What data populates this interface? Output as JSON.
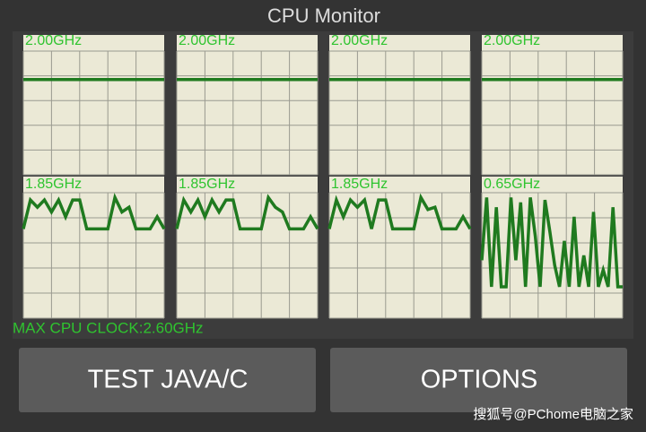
{
  "title": "CPU Monitor",
  "ylim": [
    0,
    2.6
  ],
  "line_color": "#1f7a1f",
  "panels": [
    {
      "label": "2.00GHz",
      "values": [
        2.0,
        2.0,
        2.0,
        2.0,
        2.0,
        2.0,
        2.0,
        2.0,
        2.0,
        2.0,
        2.0
      ]
    },
    {
      "label": "2.00GHz",
      "values": [
        2.0,
        2.0,
        2.0,
        2.0,
        2.0,
        2.0,
        2.0,
        2.0,
        2.0,
        2.0,
        2.0
      ]
    },
    {
      "label": "2.00GHz",
      "values": [
        2.0,
        2.0,
        2.0,
        2.0,
        2.0,
        2.0,
        2.0,
        2.0,
        2.0,
        2.0,
        2.0
      ]
    },
    {
      "label": "2.00GHz",
      "values": [
        2.0,
        2.0,
        2.0,
        2.0,
        2.0,
        2.0,
        2.0,
        2.0,
        2.0,
        2.0,
        2.0
      ]
    },
    {
      "label": "1.85GHz",
      "values": [
        1.85,
        2.45,
        2.3,
        2.45,
        2.2,
        2.45,
        2.1,
        2.45,
        2.45,
        1.85,
        1.85,
        1.85,
        1.85,
        2.5,
        2.2,
        2.3,
        1.85,
        1.85,
        1.85,
        2.1,
        1.85
      ]
    },
    {
      "label": "1.85GHz",
      "values": [
        1.85,
        2.45,
        2.2,
        2.45,
        2.1,
        2.45,
        2.2,
        2.45,
        2.45,
        1.85,
        1.85,
        1.85,
        1.85,
        2.5,
        2.3,
        2.2,
        1.85,
        1.85,
        1.85,
        2.1,
        1.85
      ]
    },
    {
      "label": "1.85GHz",
      "values": [
        1.85,
        2.45,
        2.1,
        2.45,
        2.3,
        2.45,
        1.85,
        2.45,
        2.45,
        1.85,
        1.85,
        1.85,
        1.85,
        2.5,
        2.25,
        2.3,
        1.85,
        1.85,
        1.85,
        2.1,
        1.85
      ]
    },
    {
      "label": "0.65GHz",
      "values": [
        1.2,
        2.5,
        0.65,
        2.3,
        0.65,
        0.65,
        2.5,
        1.2,
        2.4,
        0.65,
        2.5,
        1.7,
        0.65,
        2.45,
        1.8,
        1.1,
        0.65,
        1.6,
        0.65,
        2.1,
        0.65,
        1.3,
        0.65,
        2.2,
        0.65,
        1.0,
        0.65,
        2.3,
        0.65,
        0.65
      ]
    }
  ],
  "max_clock": "MAX CPU CLOCK:2.60GHz",
  "buttons": [
    "TEST JAVA/C",
    "OPTIONS"
  ],
  "watermark": "搜狐号@PChome电脑之家"
}
